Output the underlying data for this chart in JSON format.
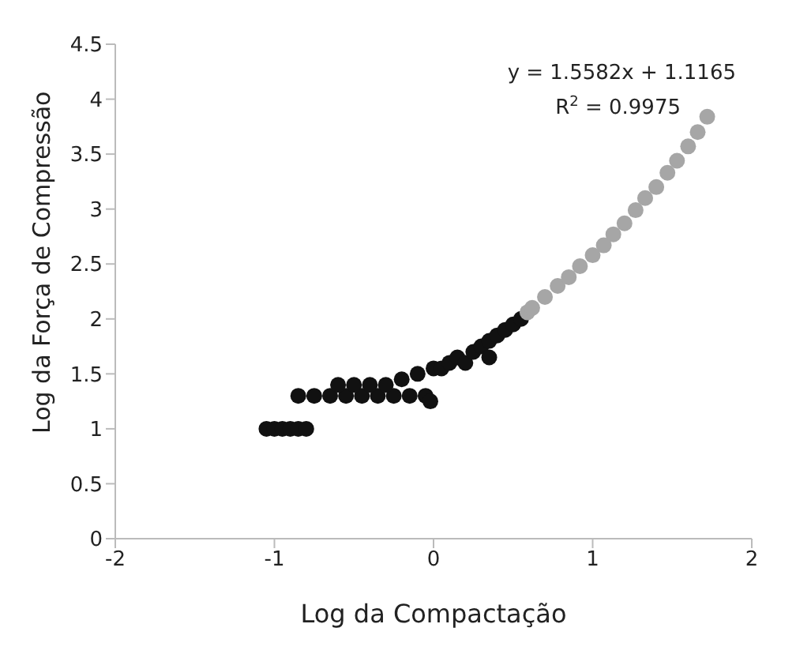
{
  "chart_data": {
    "type": "scatter",
    "xlabel": "Log da Compactação",
    "ylabel": "Log da Força de Compressão",
    "xlim": [
      -2,
      2
    ],
    "xticks": [
      -2,
      -1,
      0,
      1,
      2
    ],
    "ylim": [
      0,
      4.5
    ],
    "yticks": [
      0,
      0.5,
      1,
      1.5,
      2,
      2.5,
      3,
      3.5,
      4,
      4.5
    ],
    "grid": false,
    "marker": "circle",
    "annotations": [
      "y = 1.5582x  + 1.1165",
      "R$^{2}$ = 0.9975"
    ],
    "series": [
      {
        "color": "#111111",
        "x": [
          -1.05,
          -1.0,
          -0.95,
          -0.9,
          -0.85,
          -0.8,
          -0.85,
          -0.75,
          -0.65,
          -0.55,
          -0.45,
          -0.35,
          -0.25,
          -0.15,
          -0.05,
          -0.6,
          -0.5,
          -0.4,
          -0.3,
          -0.2,
          -0.1,
          0.0,
          -0.02,
          0.05,
          0.1,
          0.15,
          0.2,
          0.25,
          0.3,
          0.35,
          0.4,
          0.45,
          0.5,
          0.55,
          0.35
        ],
        "values": [
          1.0,
          1.0,
          1.0,
          1.0,
          1.0,
          1.0,
          1.3,
          1.3,
          1.3,
          1.3,
          1.3,
          1.3,
          1.3,
          1.3,
          1.3,
          1.4,
          1.4,
          1.4,
          1.4,
          1.45,
          1.5,
          1.55,
          1.25,
          1.55,
          1.6,
          1.65,
          1.6,
          1.7,
          1.75,
          1.8,
          1.85,
          1.9,
          1.95,
          2.0,
          1.65
        ]
      },
      {
        "color": "#a6a6a6",
        "x": [
          0.59,
          0.62,
          0.7,
          0.78,
          0.85,
          0.92,
          1.0,
          1.07,
          1.13,
          1.2,
          1.27,
          1.33,
          1.4,
          1.47,
          1.53,
          1.6,
          1.66,
          1.72
        ],
        "values": [
          2.06,
          2.1,
          2.2,
          2.3,
          2.38,
          2.48,
          2.58,
          2.67,
          2.77,
          2.87,
          2.99,
          3.1,
          3.2,
          3.33,
          3.44,
          3.57,
          3.7,
          3.84
        ]
      }
    ]
  }
}
